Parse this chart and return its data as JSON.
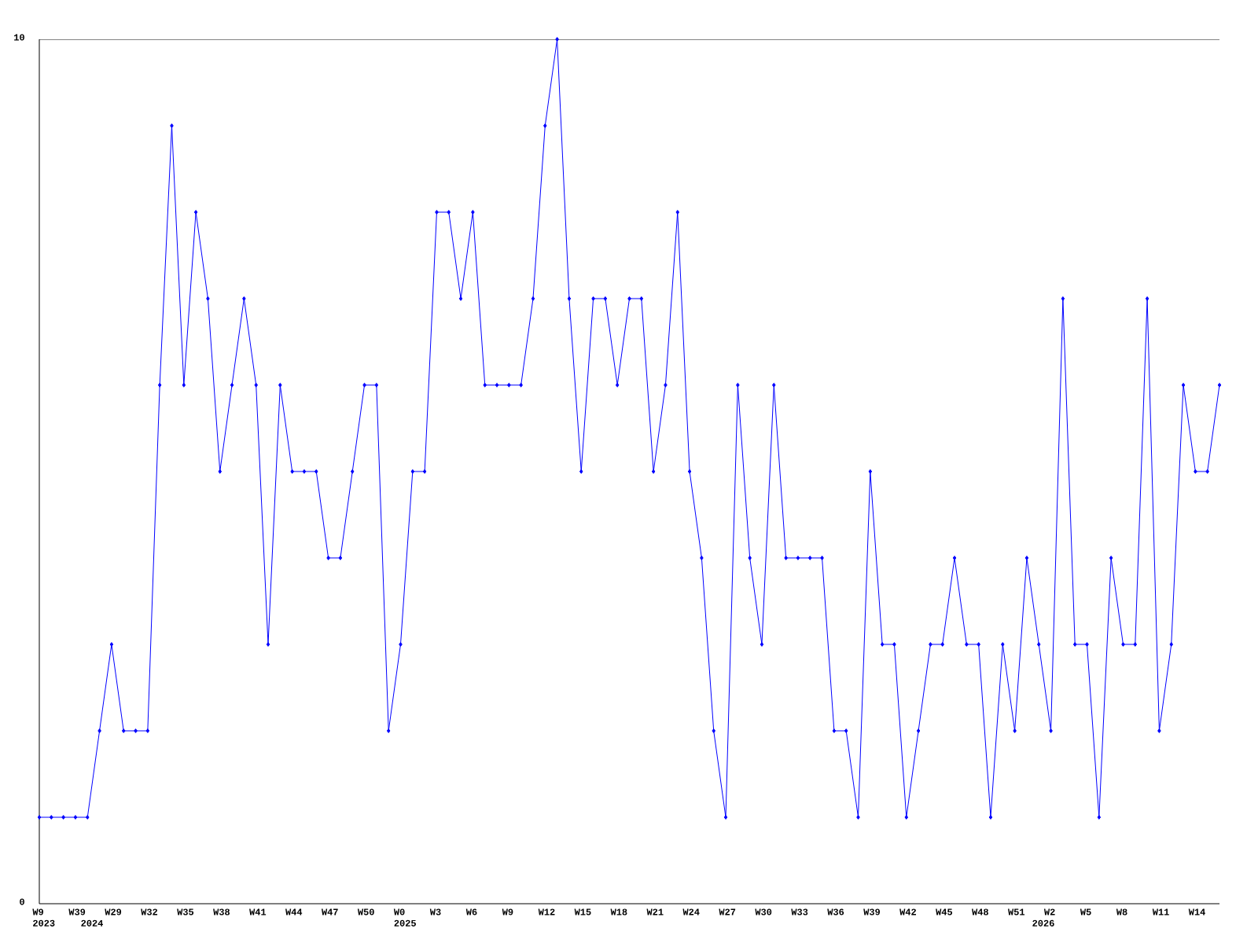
{
  "chart_data": {
    "type": "line",
    "categories": [
      "W9 2023",
      null,
      null,
      "W39",
      "2024",
      null,
      "W29",
      null,
      null,
      "W32",
      null,
      null,
      "W35",
      null,
      null,
      "W38",
      null,
      null,
      "W41",
      null,
      null,
      "W44",
      null,
      null,
      "W47",
      null,
      null,
      "W50",
      null,
      null,
      "W0 2025",
      null,
      null,
      "W3",
      null,
      null,
      "W6",
      null,
      null,
      "W9",
      null,
      null,
      "W12",
      null,
      null,
      "W15",
      null,
      null,
      "W18",
      null,
      null,
      "W21",
      null,
      null,
      "W24",
      null,
      null,
      "W27",
      null,
      null,
      "W30",
      null,
      null,
      "W33",
      null,
      null,
      "W36",
      null,
      null,
      "W39",
      null,
      null,
      "W42",
      null,
      null,
      "W45",
      null,
      null,
      "W48",
      null,
      null,
      "W51",
      null,
      "2026",
      "W2",
      null,
      null,
      "W5",
      null,
      null,
      "W8",
      null,
      null,
      "W11",
      null,
      null,
      "W14",
      null,
      null
    ],
    "series": [
      {
        "color": "#0000ff",
        "values": [
          1,
          1,
          1,
          1,
          1,
          2,
          3,
          2,
          2,
          2,
          6,
          9,
          6,
          8,
          7,
          5,
          6,
          7,
          6,
          3,
          6,
          5,
          5,
          5,
          4,
          4,
          5,
          6,
          6,
          2,
          3,
          5,
          5,
          8,
          8,
          7,
          8,
          6,
          6,
          6,
          6,
          7,
          9,
          10,
          7,
          5,
          7,
          7,
          6,
          7,
          7,
          5,
          6,
          8,
          5,
          4,
          2,
          1,
          6,
          4,
          3,
          6,
          4,
          4,
          4,
          4,
          2,
          2,
          1,
          5,
          3,
          3,
          1,
          2,
          3,
          3,
          4,
          3,
          3,
          1,
          3,
          2,
          4,
          3,
          2,
          7,
          3,
          3,
          1,
          4,
          3,
          3,
          7,
          2,
          3,
          6,
          5,
          5,
          6
        ]
      }
    ],
    "ylim": [
      0,
      10
    ],
    "yticks": [
      0,
      10
    ],
    "marker": "diamond",
    "line_style": "solid"
  }
}
